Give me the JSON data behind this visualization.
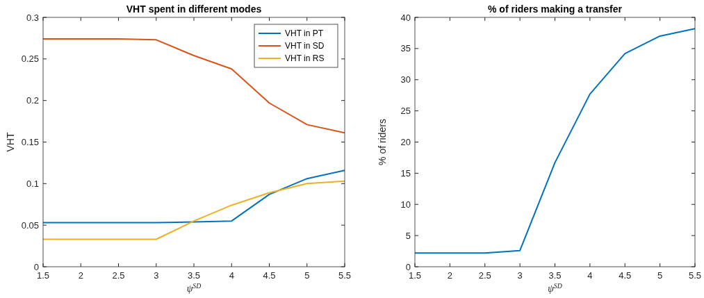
{
  "chart_data": [
    {
      "type": "line",
      "title": "VHT spent in different modes",
      "xlabel": "ψ$^{SD}$",
      "ylabel": "VHT",
      "x": [
        1.5,
        2,
        2.5,
        3,
        3.5,
        4,
        4.5,
        5,
        5.5
      ],
      "xlim": [
        1.5,
        5.5
      ],
      "xticks": [
        1.5,
        2,
        2.5,
        3,
        3.5,
        4,
        4.5,
        5,
        5.5
      ],
      "ylim": [
        0,
        0.3
      ],
      "yticks": [
        0,
        0.05,
        0.1,
        0.15,
        0.2,
        0.25,
        0.3
      ],
      "legend": "top right",
      "grid": false,
      "series": [
        {
          "name": "VHT in PT",
          "color": "#0072bd",
          "values": [
            0.053,
            0.053,
            0.053,
            0.053,
            0.054,
            0.055,
            0.087,
            0.106,
            0.116
          ]
        },
        {
          "name": "VHT in SD",
          "color": "#d95319",
          "values": [
            0.274,
            0.274,
            0.274,
            0.273,
            0.254,
            0.238,
            0.197,
            0.171,
            0.161
          ]
        },
        {
          "name": "VHT in RS",
          "color": "#edb120",
          "values": [
            0.033,
            0.033,
            0.033,
            0.033,
            0.055,
            0.074,
            0.089,
            0.1,
            0.103
          ]
        }
      ]
    },
    {
      "type": "line",
      "title": "% of riders making a transfer",
      "xlabel": "ψ$^{SD}$",
      "ylabel": "% of riders",
      "x": [
        1.5,
        2,
        2.5,
        3,
        3.5,
        4,
        4.5,
        5,
        5.5
      ],
      "xlim": [
        1.5,
        5.5
      ],
      "xticks": [
        1.5,
        2,
        2.5,
        3,
        3.5,
        4,
        4.5,
        5,
        5.5
      ],
      "ylim": [
        0,
        40
      ],
      "yticks": [
        0,
        5,
        10,
        15,
        20,
        25,
        30,
        35,
        40
      ],
      "grid": false,
      "series": [
        {
          "color": "#0072bd",
          "values": [
            2.2,
            2.2,
            2.2,
            2.6,
            16.7,
            27.7,
            34.2,
            37.0,
            38.2
          ]
        }
      ]
    }
  ]
}
